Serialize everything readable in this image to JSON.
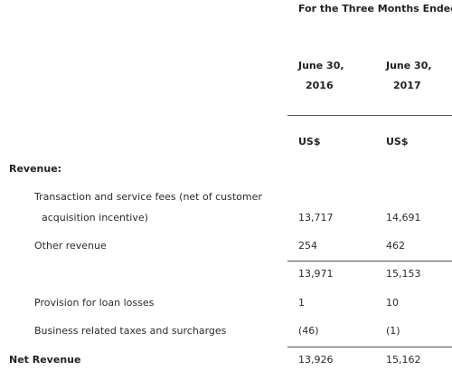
{
  "header": {
    "period": "For the Three Months Ended",
    "columns": [
      {
        "date": "June 30,",
        "year": "2016",
        "currency": "US$"
      },
      {
        "date": "June 30,",
        "year": "2017",
        "currency": "US$"
      }
    ]
  },
  "section": "Revenue:",
  "rows": [
    {
      "label": [
        "Transaction and service fees (net of customer",
        "acquisition incentive)"
      ],
      "values": [
        "13,717",
        "14,691"
      ]
    },
    {
      "label": [
        "Other revenue"
      ],
      "values": [
        "254",
        "462"
      ]
    },
    {
      "values": [
        "13,971",
        "15,153"
      ]
    },
    {
      "label": [
        "Provision for loan losses"
      ],
      "values": [
        "1",
        "10"
      ]
    },
    {
      "label": [
        "Business related taxes and surcharges"
      ],
      "values": [
        "(46)",
        "(1)"
      ]
    }
  ],
  "total": {
    "label": "Net Revenue",
    "values": [
      "13,926",
      "15,162"
    ]
  }
}
